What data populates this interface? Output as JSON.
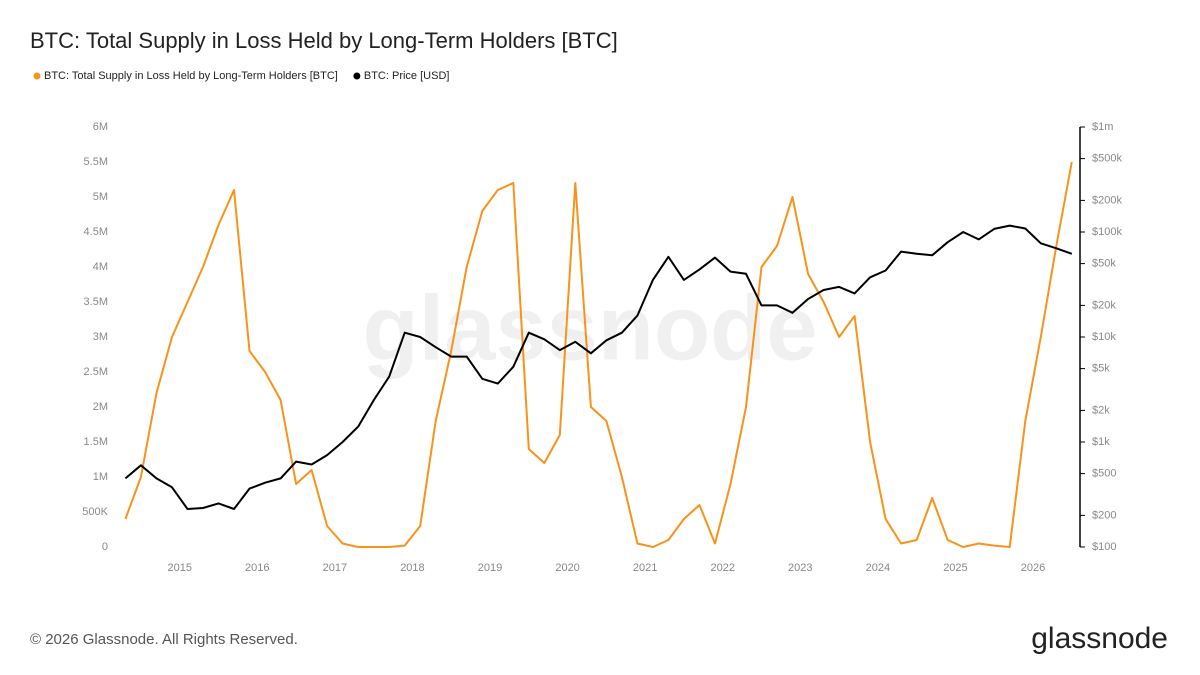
{
  "chart_data": {
    "type": "line",
    "title": "BTC: Total Supply in Loss Held by Long-Term Holders [BTC]",
    "copyright": "© 2026 Glassnode. All Rights Reserved.",
    "brand": "glassnode",
    "x": [
      2014.3,
      2014.5,
      2014.7,
      2014.9,
      2015.1,
      2015.3,
      2015.5,
      2015.7,
      2015.9,
      2016.1,
      2016.3,
      2016.5,
      2016.7,
      2016.9,
      2017.1,
      2017.3,
      2017.5,
      2017.7,
      2017.9,
      2018.1,
      2018.3,
      2018.5,
      2018.7,
      2018.9,
      2019.1,
      2019.3,
      2019.5,
      2019.7,
      2019.9,
      2020.1,
      2020.3,
      2020.5,
      2020.7,
      2020.9,
      2021.1,
      2021.3,
      2021.5,
      2021.7,
      2021.9,
      2022.1,
      2022.3,
      2022.5,
      2022.7,
      2022.9,
      2023.1,
      2023.3,
      2023.5,
      2023.7,
      2023.9,
      2024.1,
      2024.3,
      2024.5,
      2024.7,
      2024.9,
      2025.1,
      2025.3,
      2025.5,
      2025.7,
      2025.9,
      2026.1,
      2026.3,
      2026.5
    ],
    "series": [
      {
        "name": "BTC: Total Supply in Loss Held by Long-Term Holders [BTC]",
        "color": "#f7931a",
        "axis": "y",
        "values": [
          400000,
          1000000,
          2200000,
          3000000,
          3500000,
          4000000,
          4600000,
          5100000,
          2800000,
          2500000,
          2100000,
          900000,
          1100000,
          300000,
          50000,
          0,
          0,
          0,
          20000,
          300000,
          1800000,
          2800000,
          4000000,
          4800000,
          5100000,
          5200000,
          1400000,
          1200000,
          1600000,
          5200000,
          2000000,
          1800000,
          1000000,
          50000,
          0,
          100000,
          400000,
          600000,
          50000,
          900000,
          2000000,
          4000000,
          4300000,
          5000000,
          3900000,
          3500000,
          3000000,
          3300000,
          1500000,
          400000,
          50000,
          100000,
          700000,
          100000,
          0,
          50000,
          20000,
          0,
          1800000,
          3000000,
          4300000,
          5500000
        ]
      },
      {
        "name": "BTC: Price [USD]",
        "color": "#000000",
        "axis": "y2",
        "values": [
          450,
          600,
          450,
          370,
          230,
          235,
          260,
          230,
          360,
          410,
          450,
          650,
          610,
          750,
          1000,
          1400,
          2500,
          4200,
          11000,
          10000,
          8000,
          6500,
          6500,
          4000,
          3600,
          5200,
          11000,
          9500,
          7500,
          9000,
          7000,
          9300,
          11000,
          16000,
          35000,
          58000,
          35000,
          44000,
          57000,
          42000,
          40000,
          20000,
          20000,
          17000,
          23000,
          28000,
          30000,
          26000,
          37000,
          43000,
          65000,
          62000,
          60000,
          80000,
          100000,
          85000,
          107000,
          115000,
          108000,
          78000,
          70000,
          62000
        ]
      }
    ],
    "xlim": [
      2014.23,
      2026.58
    ],
    "xticks": [
      2015,
      2016,
      2017,
      2018,
      2019,
      2020,
      2021,
      2022,
      2023,
      2024,
      2025,
      2026
    ],
    "ylim": [
      0,
      6000000
    ],
    "yticks": [
      0,
      {
        "value": 500000,
        "label": "500K"
      },
      {
        "value": 1000000,
        "label": "1M"
      },
      {
        "value": 1500000,
        "label": "1.5M"
      },
      {
        "value": 2000000,
        "label": "2M"
      },
      {
        "value": 2500000,
        "label": "2.5M"
      },
      {
        "value": 3000000,
        "label": "3M"
      },
      {
        "value": 3500000,
        "label": "3.5M"
      },
      {
        "value": 4000000,
        "label": "4M"
      },
      {
        "value": 4500000,
        "label": "4.5M"
      },
      {
        "value": 5000000,
        "label": "5M"
      },
      {
        "value": 5500000,
        "label": "5.5M"
      },
      {
        "value": 6000000,
        "label": "6M"
      }
    ],
    "y2lim": [
      100,
      1000000
    ],
    "y2scale": "log",
    "y2ticks": [
      {
        "value": 100,
        "label": "$100"
      },
      {
        "value": 200,
        "label": "$200"
      },
      {
        "value": 500,
        "label": "$500"
      },
      {
        "value": 1000,
        "label": "$1k"
      },
      {
        "value": 2000,
        "label": "$2k"
      },
      {
        "value": 5000,
        "label": "$5k"
      },
      {
        "value": 10000,
        "label": "$10k"
      },
      {
        "value": 20000,
        "label": "$20k"
      },
      {
        "value": 50000,
        "label": "$50k"
      },
      {
        "value": 100000,
        "label": "$100k"
      },
      {
        "value": 200000,
        "label": "$200k"
      },
      {
        "value": 500000,
        "label": "$500k"
      },
      {
        "value": 1000000,
        "label": "$1m"
      }
    ],
    "grid": false
  }
}
